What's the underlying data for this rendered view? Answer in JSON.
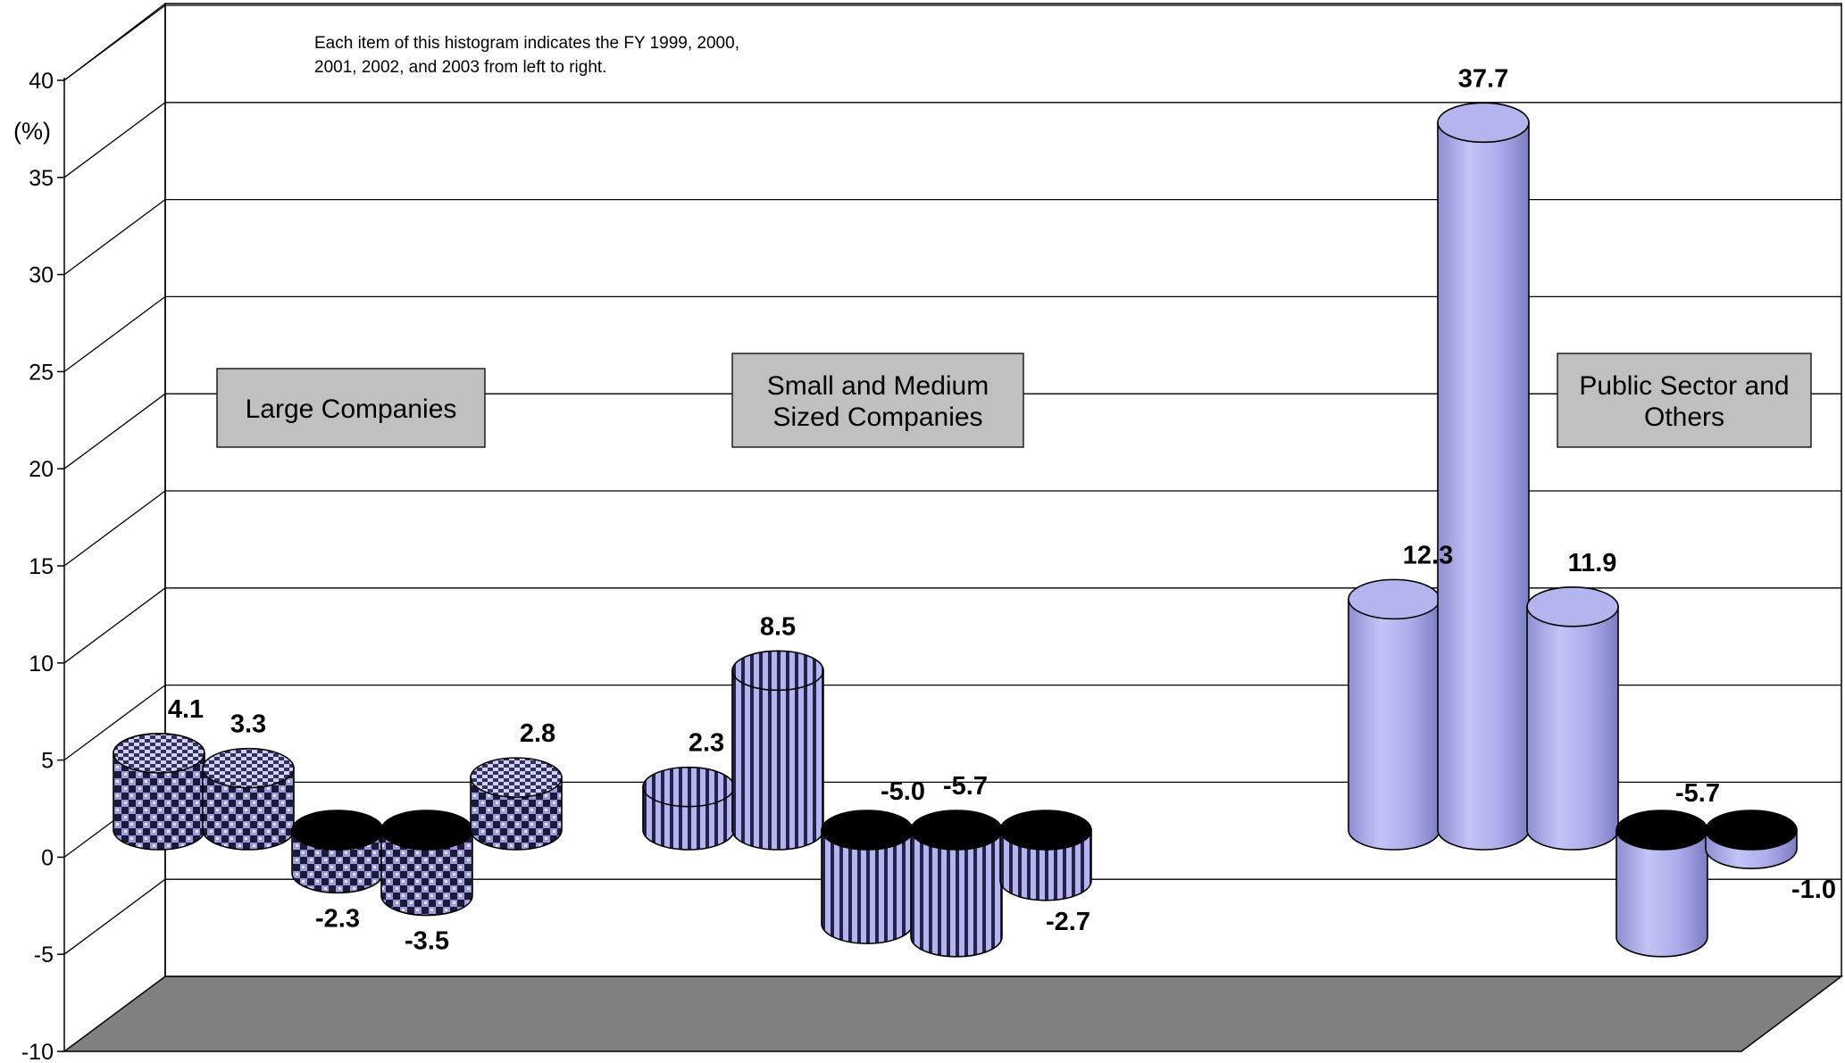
{
  "chart_data": {
    "type": "bar",
    "ylabel": "(%)",
    "ylim": [
      -10,
      40
    ],
    "yticks": [
      40,
      35,
      30,
      25,
      20,
      15,
      10,
      5,
      0,
      -5,
      -10
    ],
    "grid": true,
    "note_lines": [
      "Each item of this histogram indicates the FY 1999, 2000,",
      "2001, 2002, and 2003 from left to right."
    ],
    "groups": [
      {
        "label_lines": [
          "Large Companies"
        ],
        "values": [
          4.1,
          3.3,
          -2.3,
          -3.5,
          2.8
        ],
        "value_labels": [
          "4.1",
          "3.3",
          "-2.3",
          "-3.5",
          "2.8"
        ],
        "pattern": "check"
      },
      {
        "label_lines": [
          "Small and Medium",
          "Sized Companies"
        ],
        "values": [
          2.3,
          8.5,
          -5.0,
          -5.7,
          -2.7
        ],
        "value_labels": [
          "2.3",
          "8.5",
          "-5.0",
          "-5.7",
          "-2.7"
        ],
        "pattern": "stripes"
      },
      {
        "label_lines": [
          "Public Sector and",
          "Others"
        ],
        "values": [
          12.3,
          37.7,
          11.9,
          -5.7,
          -1.0
        ],
        "value_labels": [
          "12.3",
          "37.7",
          "11.9",
          "-5.7",
          "-1.0"
        ],
        "pattern": "solid"
      }
    ],
    "colors": {
      "bar": "#b4b4ee",
      "bar_dark": "#7070b0",
      "floor": "#808080",
      "label_box": "#c0c0c0"
    }
  }
}
